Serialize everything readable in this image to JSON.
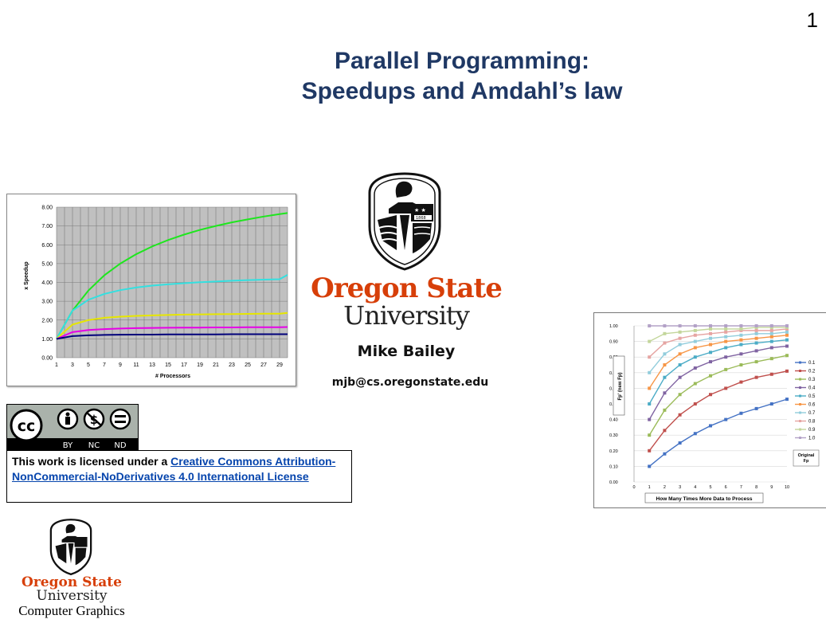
{
  "slide_number": "1",
  "title": {
    "line1": "Parallel Programming:",
    "line2": "Speedups and Amdahl’s law"
  },
  "institution": {
    "name_line1": "Oregon State",
    "name_line2": "University",
    "logo_year": "1868"
  },
  "author": {
    "name": "Mike Bailey",
    "email": "mjb@cs.oregonstate.edu"
  },
  "license": {
    "badge_labels": [
      "BY",
      "NC",
      "ND"
    ],
    "text": "This work is licensed under a ",
    "link_text": "Creative Commons Attribution-NonCommercial-NoDerivatives 4.0 International License"
  },
  "footer": {
    "name_line1": "Oregon State",
    "name_line2": "University",
    "department": "Computer Graphics"
  },
  "colors": {
    "title": "#1f3864",
    "osu_orange": "#d73f09",
    "link": "#0645ad"
  },
  "chart_data": [
    {
      "type": "line",
      "xlabel": "# Processors",
      "ylabel": "x Speedup",
      "x": [
        1,
        3,
        5,
        7,
        9,
        11,
        13,
        15,
        17,
        19,
        21,
        23,
        25,
        27,
        29,
        30
      ],
      "x_tick_labels": [
        "1",
        "3",
        "5",
        "7",
        "9",
        "11",
        "13",
        "15",
        "17",
        "19",
        "21",
        "23",
        "25",
        "27",
        "29"
      ],
      "y_tick_labels": [
        "0.00",
        "1.00",
        "2.00",
        "3.00",
        "4.00",
        "5.00",
        "6.00",
        "7.00",
        "8.00"
      ],
      "ylim": [
        0,
        8
      ],
      "grid": true,
      "series": [
        {
          "color": "#1ee61e",
          "values": [
            1.0,
            2.5,
            3.57,
            4.38,
            5.0,
            5.5,
            5.91,
            6.25,
            6.54,
            6.79,
            7.0,
            7.19,
            7.35,
            7.5,
            7.63,
            7.69
          ]
        },
        {
          "color": "#33e0e0",
          "values": [
            1.0,
            2.5,
            3.08,
            3.39,
            3.59,
            3.73,
            3.83,
            3.9,
            3.96,
            4.01,
            4.05,
            4.09,
            4.12,
            4.15,
            4.17,
            4.4
          ]
        },
        {
          "color": "#e6e600",
          "values": [
            1.0,
            1.76,
            2.0,
            2.12,
            2.18,
            2.22,
            2.25,
            2.27,
            2.29,
            2.3,
            2.31,
            2.32,
            2.33,
            2.34,
            2.34,
            2.38
          ]
        },
        {
          "color": "#e600e6",
          "values": [
            1.0,
            1.36,
            1.47,
            1.52,
            1.55,
            1.57,
            1.58,
            1.59,
            1.6,
            1.6,
            1.61,
            1.61,
            1.62,
            1.62,
            1.62,
            1.63
          ]
        },
        {
          "color": "#00007a",
          "values": [
            1.0,
            1.15,
            1.19,
            1.21,
            1.22,
            1.23,
            1.23,
            1.24,
            1.24,
            1.24,
            1.24,
            1.25,
            1.25,
            1.25,
            1.25,
            1.25
          ]
        }
      ]
    },
    {
      "type": "line",
      "xlabel": "How Many Times More Data to Process",
      "ylabel": "Fp' (new Fp)",
      "x": [
        1,
        2,
        3,
        4,
        5,
        6,
        7,
        8,
        9,
        10
      ],
      "x_tick_labels": [
        "0",
        "1",
        "2",
        "3",
        "4",
        "5",
        "6",
        "7",
        "8",
        "9",
        "10"
      ],
      "y_tick_labels": [
        "0.00",
        "0.10",
        "0.20",
        "0.30",
        "0.40",
        "0.50",
        "0.60",
        "0.70",
        "0.80",
        "0.90",
        "1.00"
      ],
      "xlim": [
        0,
        10
      ],
      "ylim": [
        0,
        1
      ],
      "grid": true,
      "legend_title": "Original Fp",
      "legend_position": "right",
      "series": [
        {
          "name": "0.1",
          "color": "#4472c4",
          "values": [
            0.1,
            0.18,
            0.25,
            0.31,
            0.36,
            0.4,
            0.44,
            0.47,
            0.5,
            0.53
          ]
        },
        {
          "name": "0.2",
          "color": "#c0504d",
          "values": [
            0.2,
            0.33,
            0.43,
            0.5,
            0.56,
            0.6,
            0.64,
            0.67,
            0.69,
            0.71
          ]
        },
        {
          "name": "0.3",
          "color": "#9bbb59",
          "values": [
            0.3,
            0.46,
            0.56,
            0.63,
            0.68,
            0.72,
            0.75,
            0.77,
            0.79,
            0.81
          ]
        },
        {
          "name": "0.4",
          "color": "#8064a2",
          "values": [
            0.4,
            0.57,
            0.67,
            0.73,
            0.77,
            0.8,
            0.82,
            0.84,
            0.86,
            0.87
          ]
        },
        {
          "name": "0.5",
          "color": "#4bacc6",
          "values": [
            0.5,
            0.67,
            0.75,
            0.8,
            0.83,
            0.86,
            0.88,
            0.89,
            0.9,
            0.91
          ]
        },
        {
          "name": "0.6",
          "color": "#f79646",
          "values": [
            0.6,
            0.75,
            0.82,
            0.86,
            0.88,
            0.9,
            0.91,
            0.92,
            0.93,
            0.94
          ]
        },
        {
          "name": "0.7",
          "color": "#92cddc",
          "values": [
            0.7,
            0.82,
            0.88,
            0.9,
            0.92,
            0.93,
            0.94,
            0.95,
            0.95,
            0.96
          ]
        },
        {
          "name": "0.8",
          "color": "#e6a5a3",
          "values": [
            0.8,
            0.89,
            0.92,
            0.94,
            0.95,
            0.96,
            0.97,
            0.97,
            0.97,
            0.98
          ]
        },
        {
          "name": "0.9",
          "color": "#c3d69b",
          "values": [
            0.9,
            0.95,
            0.96,
            0.97,
            0.98,
            0.98,
            0.98,
            0.99,
            0.99,
            0.99
          ]
        },
        {
          "name": "1.0",
          "color": "#b3a2c7",
          "values": [
            1.0,
            1.0,
            1.0,
            1.0,
            1.0,
            1.0,
            1.0,
            1.0,
            1.0,
            1.0
          ]
        }
      ]
    }
  ]
}
